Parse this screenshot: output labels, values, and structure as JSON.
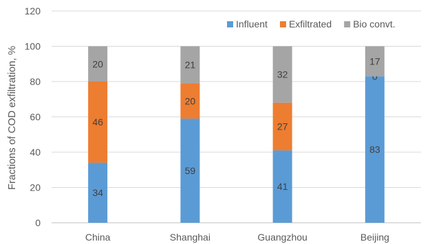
{
  "chart_data": {
    "type": "bar",
    "stacked": true,
    "ylabel": "Fractions of COD exfiltration, %",
    "xlabel": "",
    "ylim": [
      0,
      120
    ],
    "yticks": [
      0,
      20,
      40,
      60,
      80,
      100,
      120
    ],
    "grid": true,
    "legend_position": "top-right",
    "categories": [
      "China",
      "Shanghai",
      "Guangzhou",
      "Beijing"
    ],
    "series": [
      {
        "name": "Influent",
        "color": "#5b9bd5",
        "values": [
          34,
          59,
          41,
          83
        ]
      },
      {
        "name": "Exfiltrated",
        "color": "#ed7d31",
        "values": [
          46,
          20,
          27,
          0
        ]
      },
      {
        "name": "Bio convt.",
        "color": "#a5a5a5",
        "values": [
          20,
          21,
          32,
          17
        ]
      }
    ]
  }
}
